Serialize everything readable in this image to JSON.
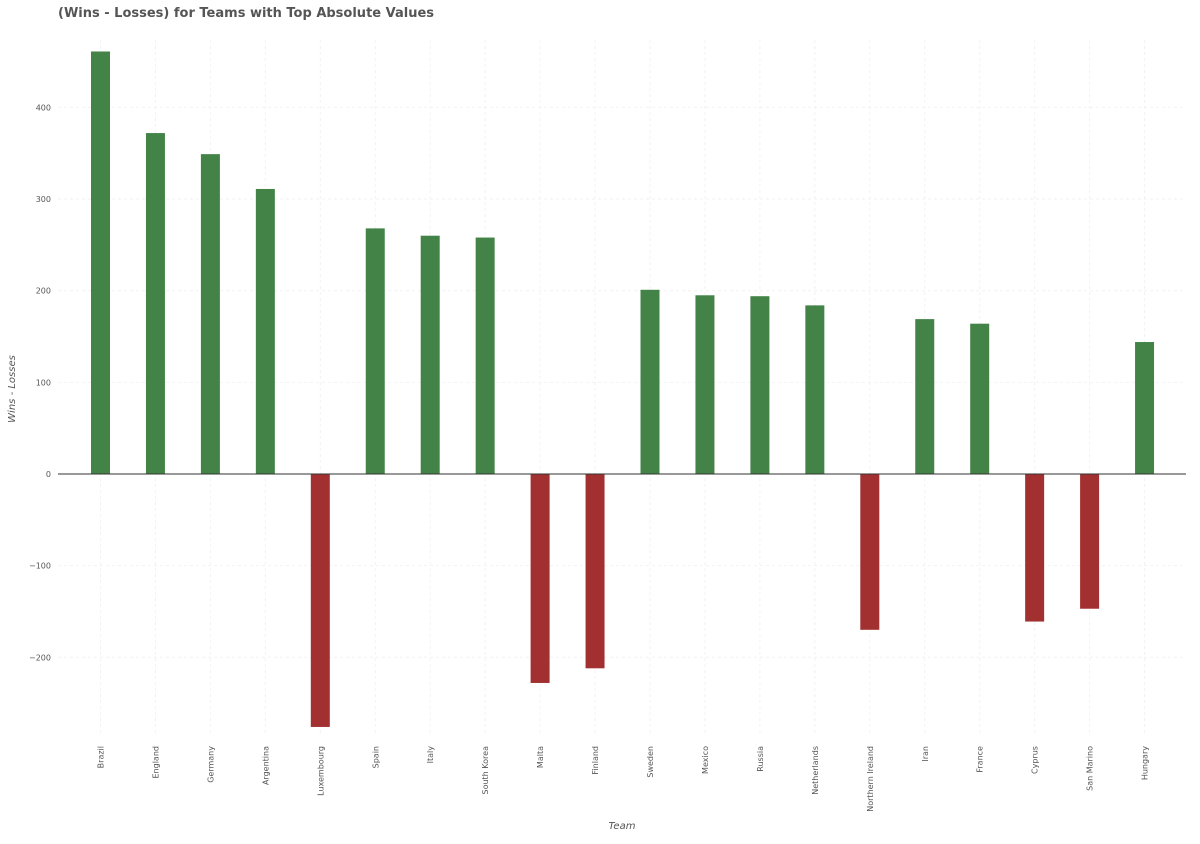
{
  "chart_data": {
    "type": "bar",
    "title": "(Wins - Losses) for Teams with Top Absolute Values",
    "xlabel": "Team",
    "ylabel": "Wins - Losses",
    "categories": [
      "Brazil",
      "England",
      "Germany",
      "Argentina",
      "Luxembourg",
      "Spain",
      "Italy",
      "South Korea",
      "Malta",
      "Finland",
      "Sweden",
      "Mexico",
      "Russia",
      "Netherlands",
      "Northern Ireland",
      "Iran",
      "France",
      "Cyprus",
      "San Marino",
      "Hungary"
    ],
    "values": [
      461,
      372,
      349,
      311,
      -276,
      268,
      260,
      258,
      -228,
      -212,
      201,
      195,
      194,
      184,
      -170,
      169,
      164,
      -161,
      -147,
      144
    ],
    "ylim": [
      -285,
      475
    ],
    "yticks": [
      -200,
      -100,
      0,
      100,
      200,
      300,
      400
    ],
    "ytick_labels": [
      "−200",
      "−100",
      "0",
      "100",
      "200",
      "300",
      "400"
    ],
    "grid": true,
    "colors": {
      "positive": "#438347",
      "negative": "#a33030",
      "axis": "#333333",
      "text": "#555555",
      "grid": "#f2f2f2"
    }
  }
}
